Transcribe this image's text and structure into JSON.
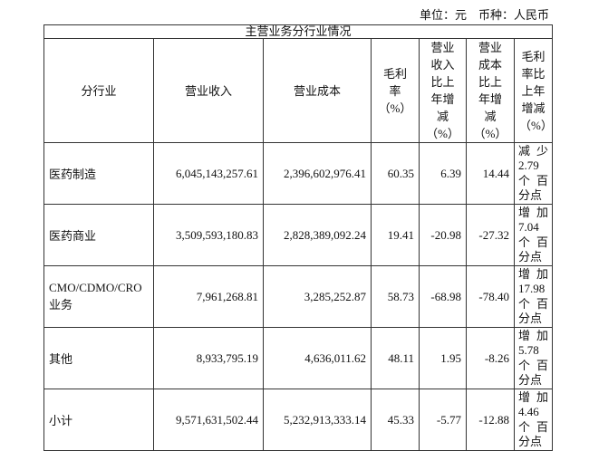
{
  "unit_line": "单位：元　币种：人民币",
  "table": {
    "title": "主营业务分行业情况",
    "headers": [
      "分行业",
      "营业收入",
      "营业成本",
      "毛利率（%）",
      "营业收入比上年增减（%）",
      "营业成本比上年增减（%）",
      "毛利率比上年增减（%）"
    ],
    "header_lines": [
      [
        "分行业"
      ],
      [
        "营业收入"
      ],
      [
        "营业成本"
      ],
      [
        "毛利",
        "率",
        "（%）"
      ],
      [
        "营业",
        "收入",
        "比上",
        "年增",
        "减",
        "（%）"
      ],
      [
        "营业",
        "成本",
        "比上",
        "年增",
        "减",
        "（%）"
      ],
      [
        "毛利",
        "率比",
        "上年",
        "增减",
        "（%）"
      ]
    ],
    "rows": [
      {
        "industry": "医药制造",
        "revenue": "6,045,143,257.61",
        "cost": "2,396,602,976.41",
        "margin": "60.35",
        "rev_change": "6.39",
        "cost_change": "14.44",
        "margin_change": "减少2.79个百分点",
        "margin_change_lines": [
          [
            "减",
            "少"
          ],
          [
            "2.79"
          ],
          [
            "个",
            "百"
          ],
          [
            "分点"
          ]
        ]
      },
      {
        "industry": "医药商业",
        "revenue": "3,509,593,180.83",
        "cost": "2,828,389,092.24",
        "margin": "19.41",
        "rev_change": "-20.98",
        "cost_change": "-27.32",
        "margin_change": "增加7.04个百分点",
        "margin_change_lines": [
          [
            "增",
            "加"
          ],
          [
            "7.04"
          ],
          [
            "个",
            "百"
          ],
          [
            "分点"
          ]
        ]
      },
      {
        "industry": "CMO/CDMO/CRO业务",
        "revenue": "7,961,268.81",
        "cost": "3,285,252.87",
        "margin": "58.73",
        "rev_change": "-68.98",
        "cost_change": "-78.40",
        "margin_change": "增加17.98个百分点",
        "margin_change_lines": [
          [
            "增",
            "加"
          ],
          [
            "17.98"
          ],
          [
            "个",
            "百"
          ],
          [
            "分点"
          ]
        ]
      },
      {
        "industry": "其他",
        "revenue": "8,933,795.19",
        "cost": "4,636,011.62",
        "margin": "48.11",
        "rev_change": "1.95",
        "cost_change": "-8.26",
        "margin_change": "增加5.78个百分点",
        "margin_change_lines": [
          [
            "增",
            "加"
          ],
          [
            "5.78"
          ],
          [
            "个",
            "百"
          ],
          [
            "分点"
          ]
        ]
      },
      {
        "industry": "小计",
        "revenue": "9,571,631,502.44",
        "cost": "5,232,913,333.14",
        "margin": "45.33",
        "rev_change": "-5.77",
        "cost_change": "-12.88",
        "margin_change": "增加4.46个百分点",
        "margin_change_lines": [
          [
            "增",
            "加"
          ],
          [
            "4.46"
          ],
          [
            "个",
            "百"
          ],
          [
            "分点"
          ]
        ]
      }
    ]
  }
}
